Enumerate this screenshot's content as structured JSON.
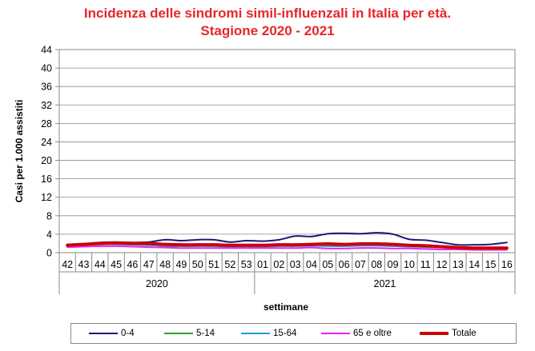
{
  "chart_data": {
    "type": "line",
    "title": "Incidenza delle sindromi simil-influenzali in Italia per età.",
    "subtitle": "Stagione 2020 - 2021",
    "xlabel": "settimane",
    "ylabel": "Casi per 1.000 assistiti",
    "ylim": [
      0,
      44
    ],
    "yticks": [
      0,
      4,
      8,
      12,
      16,
      20,
      24,
      28,
      32,
      36,
      40,
      44
    ],
    "grid": true,
    "legend_position": "bottom",
    "categories": [
      "42",
      "43",
      "44",
      "45",
      "46",
      "47",
      "48",
      "49",
      "50",
      "51",
      "52",
      "53",
      "01",
      "02",
      "03",
      "04",
      "05",
      "06",
      "07",
      "08",
      "09",
      "10",
      "11",
      "12",
      "13",
      "14",
      "15",
      "16"
    ],
    "year_groups": [
      {
        "label": "2020",
        "start": 0,
        "end": 11
      },
      {
        "label": "2021",
        "start": 12,
        "end": 27
      }
    ],
    "series": [
      {
        "name": "0-4",
        "color": "#1a1a7a",
        "values": [
          1.8,
          1.9,
          2.2,
          2.3,
          2.2,
          2.3,
          2.8,
          2.6,
          2.8,
          2.8,
          2.3,
          2.6,
          2.5,
          2.8,
          3.6,
          3.5,
          4.1,
          4.2,
          4.1,
          4.3,
          4.0,
          2.9,
          2.7,
          2.2,
          1.7,
          1.7,
          1.8,
          2.2
        ]
      },
      {
        "name": "5-14",
        "color": "#2e9e2e",
        "values": [
          1.5,
          1.7,
          1.9,
          2.0,
          1.9,
          1.8,
          1.4,
          1.4,
          1.5,
          1.4,
          1.3,
          1.4,
          1.4,
          1.6,
          1.6,
          1.8,
          2.0,
          1.9,
          1.9,
          1.8,
          1.8,
          1.6,
          1.4,
          1.2,
          1.0,
          0.9,
          0.8,
          0.8
        ]
      },
      {
        "name": "15-64",
        "color": "#1a9ee0",
        "values": [
          1.6,
          1.7,
          1.8,
          1.8,
          1.7,
          1.6,
          1.5,
          1.4,
          1.4,
          1.4,
          1.3,
          1.3,
          1.3,
          1.4,
          1.4,
          1.5,
          1.4,
          1.4,
          1.5,
          1.5,
          1.4,
          1.3,
          1.2,
          1.1,
          1.0,
          0.9,
          0.9,
          0.8
        ]
      },
      {
        "name": "65 e oltre",
        "color": "#ee22ee",
        "values": [
          1.2,
          1.3,
          1.4,
          1.4,
          1.3,
          1.2,
          1.1,
          1.0,
          1.0,
          1.0,
          1.0,
          1.0,
          1.0,
          1.0,
          1.0,
          1.1,
          0.9,
          0.9,
          1.0,
          1.0,
          0.9,
          0.9,
          0.8,
          0.7,
          0.7,
          0.6,
          0.6,
          0.6
        ]
      },
      {
        "name": "Totale",
        "color": "#cc0000",
        "values": [
          1.6,
          1.8,
          2.0,
          2.1,
          2.0,
          2.0,
          1.8,
          1.7,
          1.7,
          1.7,
          1.6,
          1.6,
          1.6,
          1.7,
          1.7,
          1.8,
          1.9,
          1.8,
          1.9,
          1.9,
          1.8,
          1.6,
          1.5,
          1.3,
          1.1,
          1.0,
          1.0,
          1.0
        ]
      }
    ]
  }
}
